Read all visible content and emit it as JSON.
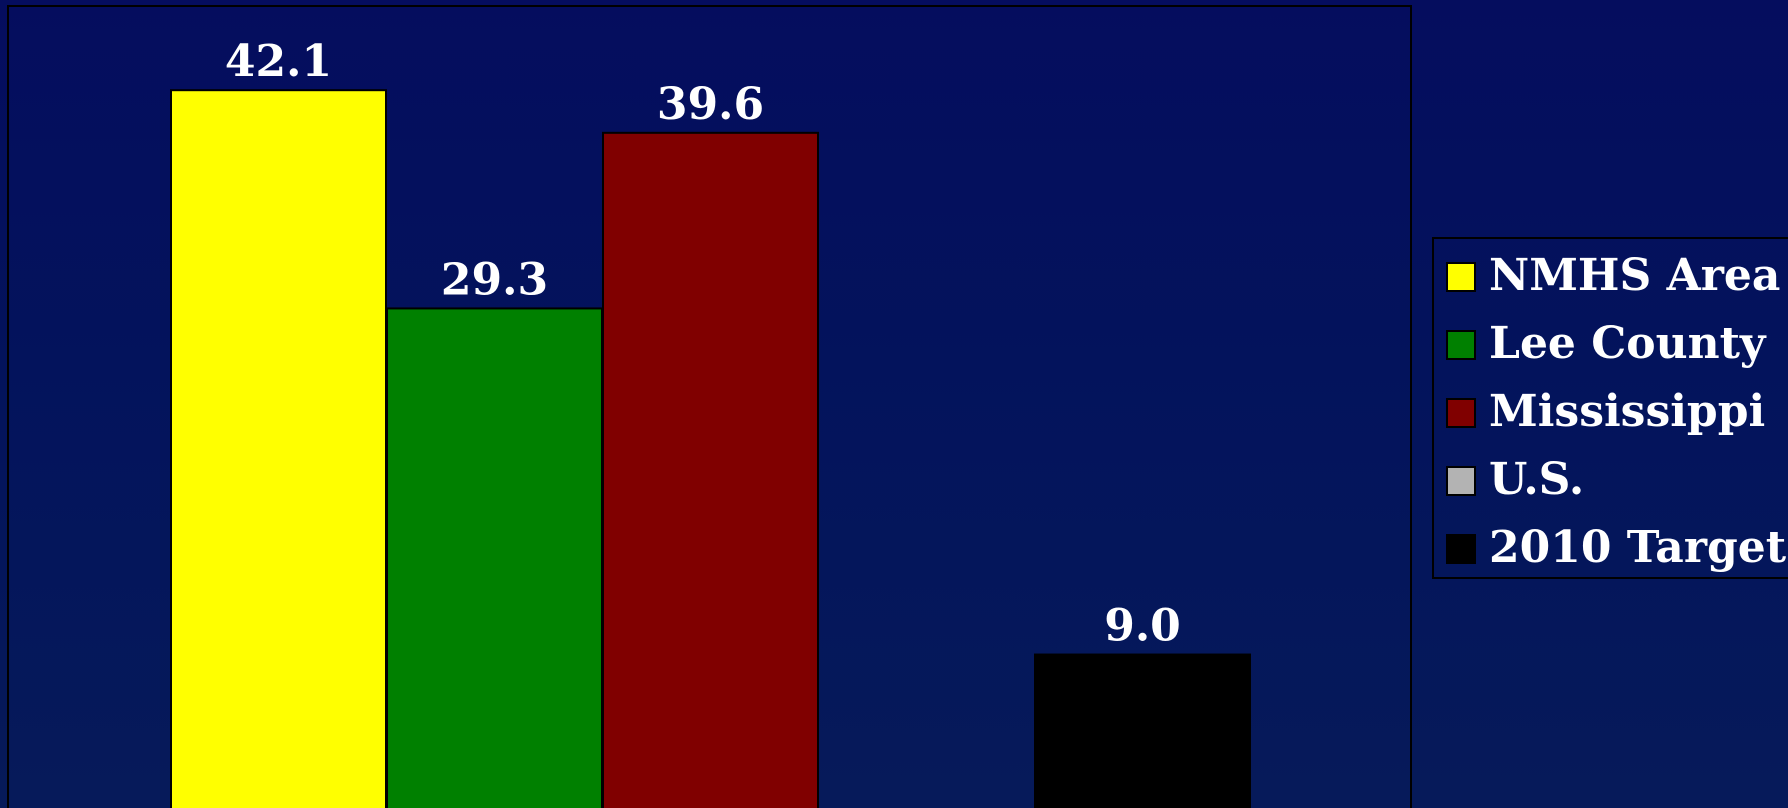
{
  "chart_data": {
    "type": "bar",
    "categories": [
      "NMHS Area",
      "Lee County",
      "Mississippi",
      "U.S.",
      "2010 Target"
    ],
    "values": [
      42.1,
      29.3,
      39.6,
      null,
      9.0
    ],
    "value_labels": [
      "42.1",
      "29.3",
      "39.6",
      "",
      "9.0"
    ],
    "colors": [
      "#ffff00",
      "#008000",
      "#800000",
      "#b3b3b3",
      "#000000"
    ],
    "title": "",
    "xlabel": "",
    "ylabel": "",
    "grid": false,
    "legend": {
      "position": "right",
      "entries": [
        {
          "label": "NMHS Area",
          "color": "#ffff00"
        },
        {
          "label": "Lee County",
          "color": "#008000"
        },
        {
          "label": "Mississippi",
          "color": "#800000"
        },
        {
          "label": "U.S.",
          "color": "#b3b3b3"
        },
        {
          "label": "2010 Target",
          "color": "#000000"
        }
      ]
    }
  }
}
